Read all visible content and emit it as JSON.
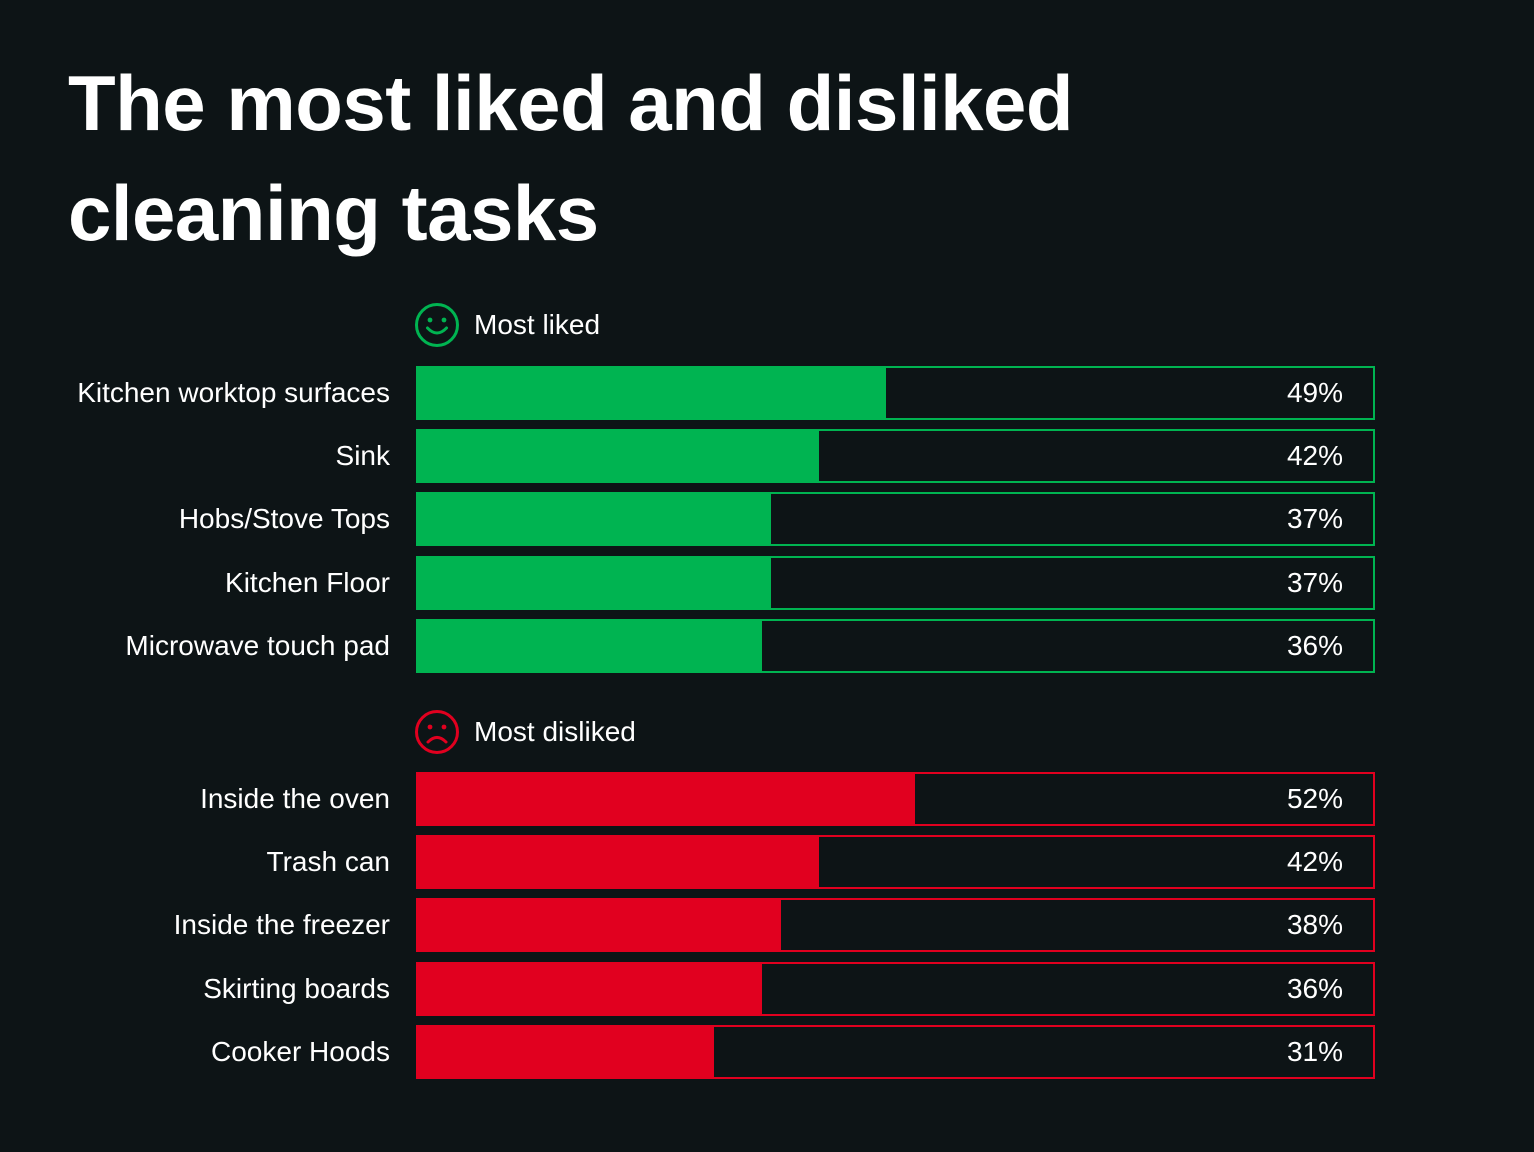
{
  "title_line1": "The most liked and disliked",
  "title_line2": "cleaning tasks",
  "colors": {
    "background": "#0d1416",
    "liked": "#00b451",
    "disliked": "#e1001f",
    "text": "#ffffff"
  },
  "chart_data": [
    {
      "type": "bar",
      "orientation": "horizontal",
      "name": "Most liked",
      "icon": "smiley-face-icon",
      "categories": [
        "Kitchen worktop surfaces",
        "Sink",
        "Hobs/Stove Tops",
        "Kitchen Floor",
        "Microwave touch pad"
      ],
      "values": [
        49,
        42,
        37,
        37,
        36
      ],
      "labels": [
        "49%",
        "42%",
        "37%",
        "37%",
        "36%"
      ],
      "xlim": [
        0,
        100
      ],
      "unit": "%",
      "grid": false
    },
    {
      "type": "bar",
      "orientation": "horizontal",
      "name": "Most disliked",
      "icon": "sad-face-icon",
      "categories": [
        "Inside the oven",
        "Trash can",
        "Inside the freezer",
        "Skirting boards",
        "Cooker Hoods"
      ],
      "values": [
        52,
        42,
        38,
        36,
        31
      ],
      "labels": [
        "52%",
        "42%",
        "38%",
        "36%",
        "31%"
      ],
      "xlim": [
        0,
        100
      ],
      "unit": "%",
      "grid": false
    }
  ]
}
